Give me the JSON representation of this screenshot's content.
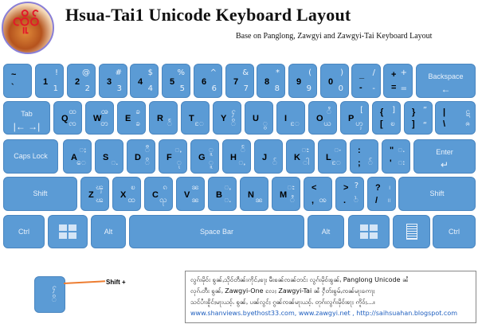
{
  "header": {
    "title": "Hsua-Tai1 Unicode Keyboard Layout",
    "subtitle": "Base on Panglong, Zawgyi and Zawgyi-Tai Keyboard Layout",
    "logo_text": "ၸိုၼ်း"
  },
  "colors": {
    "key": "#5b9bd5",
    "key_text": "#000000",
    "key_alt_text": "#eaf2fb",
    "arrow": "#ed7d31",
    "link": "#1f5fbf"
  },
  "rows": [
    [
      {
        "m1": "~",
        "m2": "`"
      },
      {
        "m1": "1",
        "t": "!",
        "b": "1"
      },
      {
        "m1": "2",
        "t": "@",
        "b": "2"
      },
      {
        "m1": "3",
        "t": "#",
        "b": "3"
      },
      {
        "m1": "4",
        "t": "$",
        "b": "4"
      },
      {
        "m1": "5",
        "t": "%",
        "b": "5"
      },
      {
        "m1": "6",
        "t": "^",
        "b": "6"
      },
      {
        "m1": "7",
        "t": "&",
        "b": "7"
      },
      {
        "m1": "8",
        "t": "*",
        "b": "8"
      },
      {
        "m1": "9",
        "t": "(",
        "b": "9"
      },
      {
        "m1": "0",
        "t": ")",
        "b": "0"
      },
      {
        "m1": "_",
        "m2": "-",
        "t": "/",
        "b": "-"
      },
      {
        "m1": "+",
        "m2": "=",
        "t": "+",
        "b": "="
      },
      {
        "label": "Backspace",
        "label2": "←"
      }
    ],
    [
      {
        "label": "Tab",
        "label2": "|←  →|"
      },
      {
        "m1": "Q",
        "t": "ထ",
        "b": "ၸ"
      },
      {
        "m1": "W",
        "t": "ၻ",
        "b": "တ"
      },
      {
        "m1": "E",
        "t": "ၶ",
        "b": "ၶ"
      },
      {
        "m1": "R",
        "b": "ႅ"
      },
      {
        "m1": "T",
        "b": "ႄ"
      },
      {
        "m1": "Y",
        "t": "ႁ",
        "b": "ိ"
      },
      {
        "m1": "U",
        "b": "ွ"
      },
      {
        "m1": "I",
        "b": "ႄ"
      },
      {
        "m1": "O",
        "t": "ႆ",
        "b": "ယ"
      },
      {
        "m1": "P",
        "t": "[",
        "b": "ၯ"
      },
      {
        "m1": "{",
        "m2": "[",
        "t": "]",
        "b": "ၿ"
      },
      {
        "m1": "}",
        "m2": "]",
        "t": "”",
        "b": "“"
      },
      {
        "m1": "|",
        "m2": "\\",
        "t": "ဋ",
        "b": "ၐ"
      }
    ],
    [
      {
        "label": "Caps Lock"
      },
      {
        "m1": "A",
        "t": "ႈ",
        "b": "ေ"
      },
      {
        "m1": "S",
        "b": "ႉ"
      },
      {
        "m1": "D",
        "t": "ီ",
        "b": "ိ"
      },
      {
        "m1": "F",
        "t": "ႇ",
        "b": "ု"
      },
      {
        "m1": "G",
        "t": "ူ",
        "b": "ူ"
      },
      {
        "m1": "H",
        "t": "ႅ",
        "b": "ႇ"
      },
      {
        "m1": "J",
        "b": "်"
      },
      {
        "m1": "K",
        "t": "ႊ",
        "b": "ါ"
      },
      {
        "m1": "L",
        "t": "ႋ",
        "b": "ႄ"
      },
      {
        "m1": ":",
        "m2": ";",
        "b": "်"
      },
      {
        "m1": "\"",
        "m2": "'",
        "t": "ႉ",
        "b": "း"
      },
      {
        "label": "Enter",
        "label2": "↵"
      }
    ],
    [
      {
        "label": "Shift"
      },
      {
        "m1": "Z",
        "t": "ၾ",
        "b": "ၽ"
      },
      {
        "m1": "X",
        "t": "ၿ",
        "b": "ထ"
      },
      {
        "m1": "C",
        "t": "ၵ",
        "b": "ၺ"
      },
      {
        "m1": "V",
        "t": "ၼ",
        "b": "ၼ"
      },
      {
        "m1": "B",
        "t": "ႇ",
        "b": "ႉ"
      },
      {
        "m1": "N",
        "b": "ၼ"
      },
      {
        "m1": "M",
        "t": "ႊ",
        "b": "ႆ"
      },
      {
        "m1": "<",
        "m2": ",",
        "b": "ꩪ"
      },
      {
        "m1": ">",
        "m2": ".",
        "t": "?",
        "b": "ႝ"
      },
      {
        "m1": "?",
        "m2": "/",
        "t": "၊",
        "b": "။"
      },
      {
        "label": "Shift"
      }
    ],
    [
      {
        "label": "Ctrl"
      },
      {
        "icon": "windows"
      },
      {
        "label": "Alt"
      },
      {
        "label": "Space Bar"
      },
      {
        "label": "Alt"
      },
      {
        "icon": "windows"
      },
      {
        "icon": "menu"
      },
      {
        "label": "Ctrl"
      }
    ]
  ],
  "legend": {
    "top": "ႁ",
    "bottom": "ိ",
    "shift_label": "Shift +"
  },
  "note": {
    "lines": [
      "လွၵ်းမိုဝ်း ၶွၼ်ႇသိုဝ်တဵၼ်းဢိုင်ႇ၊ၶႃႈ မီးၶၼ်ၸၼ်တင်း လွၵ်းမိုဝ်းၶွၼ်ႇ Panglong Unicode ၼႆ",
      "လုၵ်ႉတီး ၶွၼ်ႇ Zawgyi-One လႄႈ Zawgyi-Tai ၼႆ ႁဵတ်းၶွမ်ႇၸၼ်မႃးဢေႃႈ",
      "သင်ပၢႆးၶိူင်ႈမႃးယဝ့်ႉ ၶွၼ်ႇ ပၼ်လွင်ႈ ၵွၼ်ၸၼ်မႃးယဝ့်ႉ တုၵ်းလွၵ်းမိုဝ်းၶႃႈ ဢိူဝ်ႈ...။"
    ],
    "links": "www.shanviews.byethost33.com, www.zawgyi.net , http://saihsuahan.blogspot.com"
  }
}
